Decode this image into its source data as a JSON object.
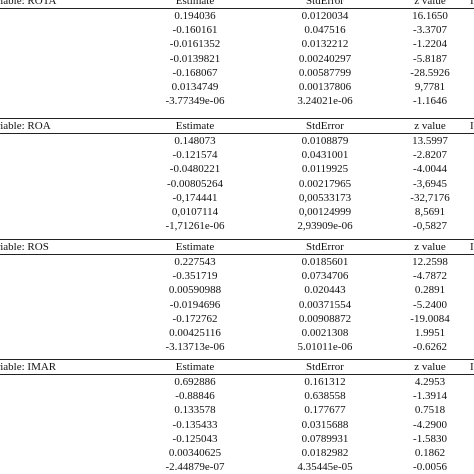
{
  "blocks": [
    {
      "header": {
        "dep": "ent variable: ROTA",
        "estimate": "Estimate",
        "stderror": "StdError",
        "zvalue": "z value",
        "last": "I"
      },
      "rows": [
        [
          "0.194036",
          "0.0120034",
          "16.1650"
        ],
        [
          "-0.160161",
          "0.047516",
          "-3.3707"
        ],
        [
          "-0.0161352",
          "0.0132212",
          "-1.2204"
        ],
        [
          "-0.0139821",
          "0.00240297",
          "-5.8187"
        ],
        [
          "-0.168067",
          "0.00587799",
          "-28.5926"
        ],
        [
          "0.0134749",
          "0.00137806",
          "9,7781"
        ],
        [
          "-3.77349e-06",
          "3.24021e-06",
          "-1.1646"
        ]
      ]
    },
    {
      "header": {
        "dep": "ent variable: ROA",
        "estimate": "Estimate",
        "stderror": "StdError",
        "zvalue": "z value",
        "last": "I"
      },
      "rows": [
        [
          "0.148073",
          "0.0108879",
          "13.5997"
        ],
        [
          "-0.121574",
          "0.0431001",
          "-2.8207"
        ],
        [
          "-0.0480221",
          "0.0119925",
          "-4.0044"
        ],
        [
          "-0.00805264",
          "0.00217965",
          "-3,6945"
        ],
        [
          "-0,174441",
          "0,00533173",
          "-32,7176"
        ],
        [
          "0,0107114",
          "0,00124999",
          "8,5691"
        ],
        [
          "-1,71261e-06",
          "2,93909e-06",
          "-0,5827"
        ]
      ]
    },
    {
      "header": {
        "dep": "ent variable: ROS",
        "estimate": "Estimate",
        "stderror": "StdError",
        "zvalue": "z value",
        "last": "I"
      },
      "rows": [
        [
          "0.227543",
          "0.0185601",
          "12.2598"
        ],
        [
          "-0.351719",
          "0.0734706",
          "-4.7872"
        ],
        [
          "0.00590988",
          "0.020443",
          "0.2891"
        ],
        [
          "-0.0194696",
          "0.00371554",
          "-5.2400"
        ],
        [
          "-0.172762",
          "0.00908872",
          "-19.0084"
        ],
        [
          "0.00425116",
          "0.0021308",
          "1.9951"
        ],
        [
          "-3.13713e-06",
          "5.01011e-06",
          "-0.6262"
        ]
      ]
    },
    {
      "header": {
        "dep": "ent variable: IMAR",
        "estimate": "Estimate",
        "stderror": "StdError",
        "zvalue": "z value",
        "last": "I"
      },
      "rows": [
        [
          "0.692886",
          "0.161312",
          "4.2953"
        ],
        [
          "-0.88846",
          "0.638558",
          "-1.3914"
        ],
        [
          "0.133578",
          "0.177677",
          "0.7518"
        ],
        [
          "-0.135433",
          "0.0315688",
          "-4.2900"
        ],
        [
          "-0.125043",
          "0.0789931",
          "-1.5830"
        ],
        [
          "0.00340625",
          "0.0182982",
          "0.1862"
        ],
        [
          "-2.44879e-07",
          "4.35445e-05",
          "-0.0056"
        ]
      ]
    }
  ]
}
